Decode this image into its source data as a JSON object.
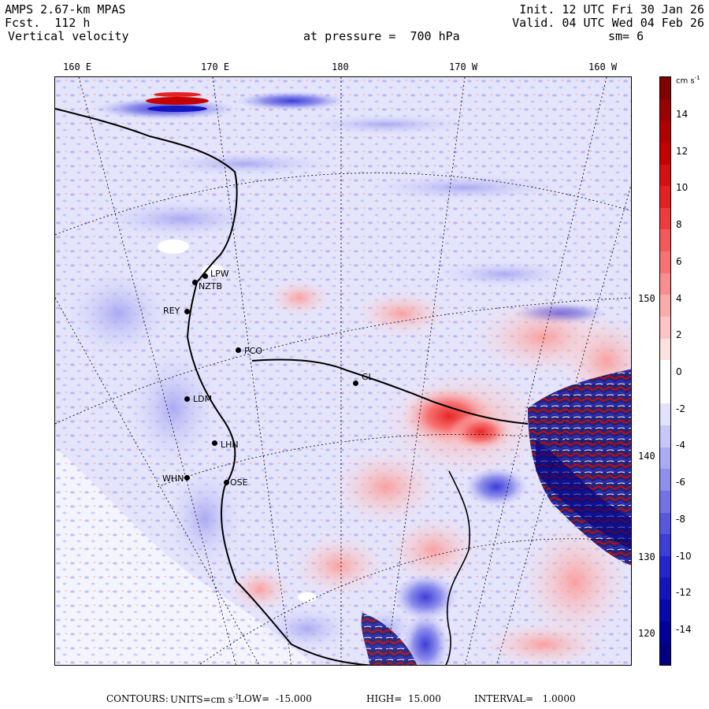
{
  "header": {
    "model": "AMPS 2.67-km MPAS",
    "forecast": "Fcst.  112 h",
    "field": "Vertical velocity",
    "init": "Init. 12 UTC Fri 30 Jan 26",
    "valid": "Valid. 04 UTC Wed 04 Feb 26",
    "pressure": "at pressure =  700 hPa",
    "smoothing": "sm= 6"
  },
  "top_ticks": [
    "160 E",
    "170 E",
    "180",
    "170 W",
    "160 W"
  ],
  "right_ticks": [
    "150 W",
    "140 W",
    "130 W",
    "120 W"
  ],
  "colorbar": {
    "units_label": "cm s",
    "units_exp": "-1",
    "labels": [
      "14",
      "12",
      "10",
      "8",
      "6",
      "4",
      "2",
      "0",
      "-2",
      "-4",
      "-6",
      "-8",
      "-10",
      "-12",
      "-14"
    ],
    "colors": [
      "#7f0000",
      "#9a0000",
      "#b00000",
      "#c40000",
      "#d61010",
      "#e52222",
      "#ef3b3b",
      "#f45858",
      "#f77272",
      "#f98e8e",
      "#fbaaaa",
      "#fcc4c4",
      "#fde0e0",
      "#ffffff",
      "#ffffff",
      "#e2e2fc",
      "#c6c6f7",
      "#aaaaf2",
      "#8e8eec",
      "#7373e6",
      "#5858df",
      "#3d3dd8",
      "#2525cf",
      "#1515c0",
      "#0808ad",
      "#000099",
      "#000080"
    ]
  },
  "stations": [
    {
      "id": "LPW",
      "label": "LPW"
    },
    {
      "id": "NZTB",
      "label": "NZTB"
    },
    {
      "id": "REY",
      "label": "REY"
    },
    {
      "id": "PCO",
      "label": "PCO"
    },
    {
      "id": "GL",
      "label": "GL"
    },
    {
      "id": "LDM",
      "label": "LDM"
    },
    {
      "id": "LHN",
      "label": "LHN"
    },
    {
      "id": "WHN",
      "label": "WHN"
    },
    {
      "id": "OSE",
      "label": "OSE"
    }
  ],
  "footer": {
    "contours": "CONTOURS:",
    "units_prefix": "UNITS=cm s",
    "units_exp": "-1",
    "low": "LOW=  -15.000",
    "high": "HIGH=  15.000",
    "interval": "INTERVAL=   1.0000"
  }
}
